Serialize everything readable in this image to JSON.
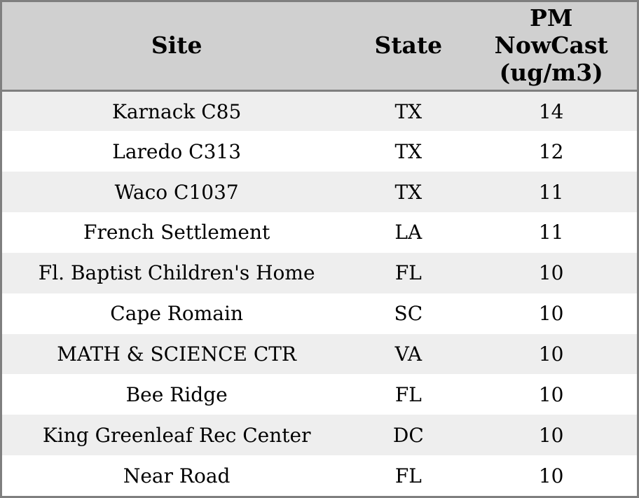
{
  "colors": {
    "outer_border": "#7f7f7f",
    "header_bg": "#d0d0d0",
    "header_separator": "#7f7f7f",
    "row_alt_bg": "#eeeeee",
    "row_bg": "#ffffff",
    "text": "#000000"
  },
  "table": {
    "headers": {
      "site": "Site",
      "state": "State",
      "pm": "PM\nNowCast\n(ug/m3)"
    },
    "rows": [
      {
        "site": "Karnack C85",
        "state": "TX",
        "pm": "14"
      },
      {
        "site": "Laredo C313",
        "state": "TX",
        "pm": "12"
      },
      {
        "site": "Waco C1037",
        "state": "TX",
        "pm": "11"
      },
      {
        "site": "French Settlement",
        "state": "LA",
        "pm": "11"
      },
      {
        "site": "Fl. Baptist Children's Home",
        "state": "FL",
        "pm": "10"
      },
      {
        "site": "Cape Romain",
        "state": "SC",
        "pm": "10"
      },
      {
        "site": "MATH & SCIENCE CTR",
        "state": "VA",
        "pm": "10"
      },
      {
        "site": "Bee Ridge",
        "state": "FL",
        "pm": "10"
      },
      {
        "site": "King Greenleaf Rec Center",
        "state": "DC",
        "pm": "10"
      },
      {
        "site": "Near Road",
        "state": "FL",
        "pm": "10"
      }
    ]
  },
  "chart_data": {
    "type": "table",
    "title": "",
    "columns": [
      "Site",
      "State",
      "PM NowCast (ug/m3)"
    ],
    "rows": [
      [
        "Karnack C85",
        "TX",
        14
      ],
      [
        "Laredo C313",
        "TX",
        12
      ],
      [
        "Waco C1037",
        "TX",
        11
      ],
      [
        "French Settlement",
        "LA",
        11
      ],
      [
        "Fl. Baptist Children's Home",
        "FL",
        10
      ],
      [
        "Cape Romain",
        "SC",
        10
      ],
      [
        "MATH & SCIENCE CTR",
        "VA",
        10
      ],
      [
        "Bee Ridge",
        "FL",
        10
      ],
      [
        "King Greenleaf Rec Center",
        "DC",
        10
      ],
      [
        "Near Road",
        "FL",
        10
      ]
    ]
  }
}
